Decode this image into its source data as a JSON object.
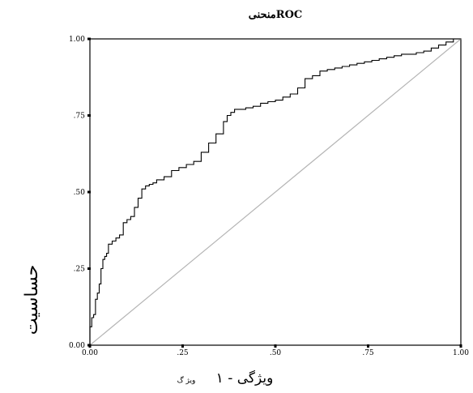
{
  "chart_data": {
    "type": "line",
    "title": "منحنیROC",
    "xlabel": "ویژگی - ۱",
    "xlabel_note": "ویژ گ",
    "ylabel": "حساسیت",
    "xlim": [
      0,
      1
    ],
    "ylim": [
      0,
      1
    ],
    "x_ticks": [
      {
        "value": 0.0,
        "label": "0.00"
      },
      {
        "value": 0.25,
        "label": ".25"
      },
      {
        "value": 0.5,
        "label": ".50"
      },
      {
        "value": 0.75,
        "label": ".75"
      },
      {
        "value": 1.0,
        "label": "1.00"
      }
    ],
    "y_ticks": [
      {
        "value": 0.0,
        "label": "0.00"
      },
      {
        "value": 0.25,
        "label": ".25"
      },
      {
        "value": 0.5,
        "label": ".50"
      },
      {
        "value": 0.75,
        "label": ".75"
      },
      {
        "value": 1.0,
        "label": "1.00"
      }
    ],
    "grid": false,
    "legend": "none",
    "colors": {
      "curve": "#000000",
      "reference": "#b4b4b4",
      "frame": "#000000"
    },
    "series": [
      {
        "role": "roc-curve",
        "x": [
          0.0,
          0.005,
          0.01,
          0.015,
          0.02,
          0.025,
          0.03,
          0.035,
          0.04,
          0.045,
          0.05,
          0.06,
          0.07,
          0.08,
          0.09,
          0.1,
          0.11,
          0.12,
          0.13,
          0.14,
          0.15,
          0.16,
          0.17,
          0.18,
          0.2,
          0.22,
          0.24,
          0.26,
          0.28,
          0.3,
          0.32,
          0.34,
          0.36,
          0.37,
          0.38,
          0.39,
          0.4,
          0.42,
          0.44,
          0.46,
          0.48,
          0.5,
          0.52,
          0.54,
          0.56,
          0.58,
          0.6,
          0.62,
          0.64,
          0.66,
          0.68,
          0.7,
          0.72,
          0.74,
          0.76,
          0.78,
          0.8,
          0.82,
          0.84,
          0.86,
          0.88,
          0.9,
          0.92,
          0.94,
          0.96,
          0.98,
          1.0
        ],
        "y": [
          0.0,
          0.06,
          0.09,
          0.1,
          0.15,
          0.17,
          0.2,
          0.25,
          0.28,
          0.29,
          0.3,
          0.33,
          0.34,
          0.35,
          0.36,
          0.4,
          0.41,
          0.42,
          0.45,
          0.48,
          0.51,
          0.52,
          0.525,
          0.53,
          0.54,
          0.55,
          0.57,
          0.58,
          0.59,
          0.6,
          0.63,
          0.66,
          0.69,
          0.73,
          0.75,
          0.76,
          0.77,
          0.77,
          0.775,
          0.78,
          0.79,
          0.795,
          0.8,
          0.81,
          0.82,
          0.84,
          0.87,
          0.88,
          0.895,
          0.9,
          0.905,
          0.91,
          0.915,
          0.92,
          0.925,
          0.93,
          0.935,
          0.94,
          0.945,
          0.95,
          0.95,
          0.955,
          0.96,
          0.97,
          0.98,
          0.99,
          1.0
        ]
      },
      {
        "role": "reference-line",
        "x": [
          0,
          1
        ],
        "y": [
          0,
          1
        ]
      }
    ]
  }
}
